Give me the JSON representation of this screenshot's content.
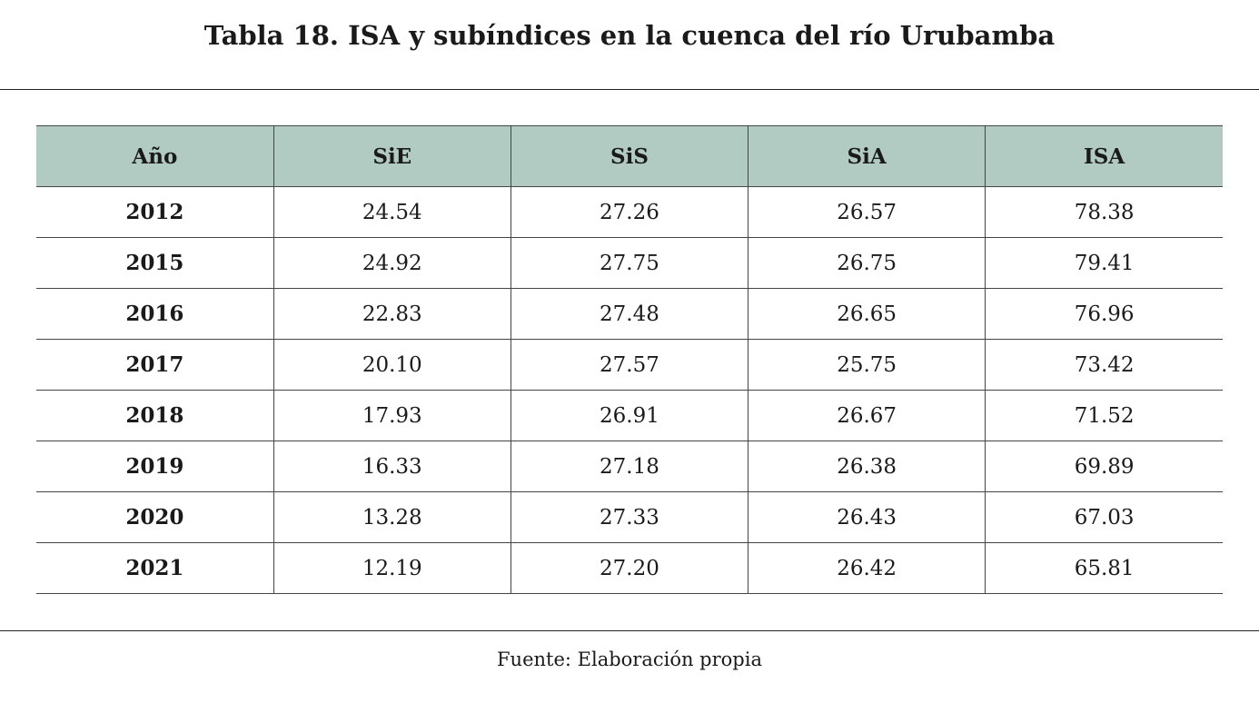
{
  "title": "Tabla 18. ISA y subíndices en la cuenca del río Urubamba",
  "table": {
    "headers": [
      "Año",
      "SiE",
      "SiS",
      "SiA",
      "ISA"
    ],
    "rows": [
      [
        "2012",
        "24.54",
        "27.26",
        "26.57",
        "78.38"
      ],
      [
        "2015",
        "24.92",
        "27.75",
        "26.75",
        "79.41"
      ],
      [
        "2016",
        "22.83",
        "27.48",
        "26.65",
        "76.96"
      ],
      [
        "2017",
        "20.10",
        "27.57",
        "25.75",
        "73.42"
      ],
      [
        "2018",
        "17.93",
        "26.91",
        "26.67",
        "71.52"
      ],
      [
        "2019",
        "16.33",
        "27.18",
        "26.38",
        "69.89"
      ],
      [
        "2020",
        "13.28",
        "27.33",
        "26.43",
        "67.03"
      ],
      [
        "2021",
        "12.19",
        "27.20",
        "26.42",
        "65.81"
      ]
    ]
  },
  "source": "Fuente: Elaboración propia",
  "colors": {
    "header_background": "#b1cbc2",
    "rule": "#222222"
  }
}
